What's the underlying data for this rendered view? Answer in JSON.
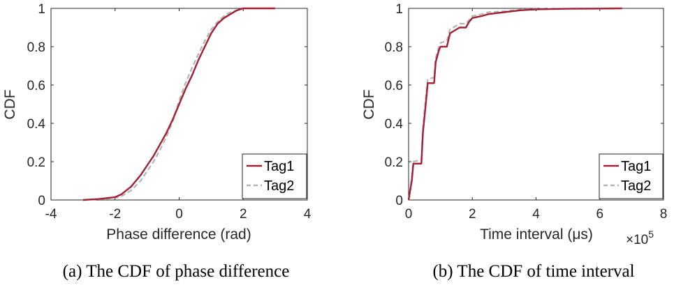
{
  "captions": [
    "(a) The CDF of phase difference",
    "(b) The CDF of time interval"
  ],
  "colors": {
    "tag1": "#a31f34",
    "tag2": "#b4b4b4",
    "axis": "#262626"
  },
  "chart_data": [
    {
      "type": "line",
      "xlabel": "Phase difference (rad)",
      "ylabel": "CDF",
      "xlim": [
        -4,
        4
      ],
      "ylim": [
        0,
        1
      ],
      "xticks": [
        "-4",
        "-2",
        "0",
        "2",
        "4"
      ],
      "yticks": [
        "0",
        "0.2",
        "0.4",
        "0.6",
        "0.8",
        "1"
      ],
      "grid": false,
      "legend": "bottom-right",
      "series": [
        {
          "name": "Tag1",
          "style": "solid",
          "x": [
            -3.0,
            -2.5,
            -2.0,
            -1.8,
            -1.5,
            -1.2,
            -1.0,
            -0.8,
            -0.6,
            -0.4,
            -0.2,
            0.0,
            0.2,
            0.4,
            0.6,
            0.8,
            1.0,
            1.2,
            1.4,
            1.6,
            1.8,
            2.0,
            2.3,
            3.0
          ],
          "y": [
            0.0,
            0.005,
            0.015,
            0.03,
            0.07,
            0.13,
            0.18,
            0.23,
            0.29,
            0.35,
            0.42,
            0.5,
            0.58,
            0.65,
            0.73,
            0.8,
            0.87,
            0.92,
            0.95,
            0.97,
            0.99,
            1.0,
            1.0,
            1.0
          ]
        },
        {
          "name": "Tag2",
          "style": "dashed",
          "x": [
            -3.0,
            -2.5,
            -2.0,
            -1.8,
            -1.5,
            -1.2,
            -1.0,
            -0.8,
            -0.6,
            -0.4,
            -0.2,
            0.0,
            0.2,
            0.4,
            0.6,
            0.8,
            1.0,
            1.2,
            1.4,
            1.6,
            1.8,
            2.0,
            2.3,
            3.0
          ],
          "y": [
            0.0,
            0.004,
            0.01,
            0.02,
            0.05,
            0.1,
            0.15,
            0.2,
            0.26,
            0.33,
            0.41,
            0.52,
            0.61,
            0.69,
            0.76,
            0.83,
            0.89,
            0.93,
            0.96,
            0.98,
            0.99,
            1.0,
            1.0,
            1.0
          ]
        }
      ]
    },
    {
      "type": "line",
      "xlabel": "Time interval (μs)",
      "ylabel": "CDF",
      "xlim": [
        0,
        8
      ],
      "ylim": [
        0,
        1
      ],
      "x_multiplier": "×10",
      "x_multiplier_exponent": "5",
      "xticks": [
        "0",
        "2",
        "4",
        "6",
        "8"
      ],
      "yticks": [
        "0",
        "0.2",
        "0.4",
        "0.6",
        "0.8",
        "1"
      ],
      "grid": false,
      "legend": "bottom-right",
      "series": [
        {
          "name": "Tag1",
          "style": "solid",
          "x": [
            0.0,
            0.1,
            0.15,
            0.4,
            0.45,
            0.55,
            0.6,
            0.8,
            0.85,
            0.95,
            1.0,
            1.2,
            1.3,
            1.4,
            1.6,
            1.8,
            1.9,
            2.0,
            2.3,
            2.5,
            3.0,
            3.5,
            4.0,
            5.0,
            6.0,
            6.7
          ],
          "y": [
            0.0,
            0.1,
            0.19,
            0.19,
            0.35,
            0.52,
            0.61,
            0.61,
            0.72,
            0.78,
            0.8,
            0.8,
            0.87,
            0.88,
            0.9,
            0.9,
            0.93,
            0.95,
            0.96,
            0.97,
            0.98,
            0.99,
            0.995,
            0.998,
            0.999,
            1.0
          ]
        },
        {
          "name": "Tag2",
          "style": "dashed",
          "x": [
            0.0,
            0.1,
            0.15,
            0.4,
            0.45,
            0.55,
            0.6,
            0.8,
            0.85,
            0.95,
            1.0,
            1.2,
            1.3,
            1.4,
            1.6,
            1.8,
            1.9,
            2.0,
            2.3,
            2.5,
            3.0,
            3.5,
            4.0,
            5.0,
            6.0,
            6.7
          ],
          "y": [
            0.0,
            0.12,
            0.2,
            0.21,
            0.38,
            0.55,
            0.63,
            0.64,
            0.74,
            0.8,
            0.82,
            0.83,
            0.89,
            0.9,
            0.92,
            0.92,
            0.94,
            0.96,
            0.97,
            0.98,
            0.985,
            0.993,
            0.997,
            0.999,
            1.0,
            1.0
          ]
        }
      ]
    }
  ]
}
